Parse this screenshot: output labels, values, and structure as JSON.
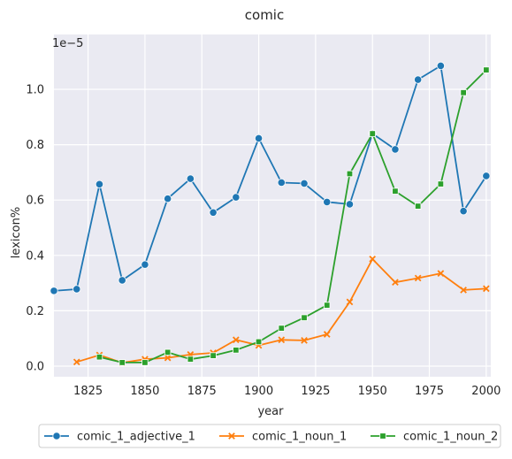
{
  "chart_data": {
    "type": "line",
    "title": "comic",
    "xlabel": "year",
    "ylabel": "lexicon%",
    "y_offset_text": "1e−5",
    "xlim": [
      1810,
      2002
    ],
    "ylim": [
      -0.4,
      1.13
    ],
    "x_ticks": [
      1825,
      1850,
      1875,
      1900,
      1925,
      1950,
      1975,
      2000
    ],
    "y_ticks": [
      0.0,
      0.2,
      0.4,
      0.6,
      0.8,
      1.0
    ],
    "y_tick_labels": [
      "0.0",
      "0.2",
      "0.4",
      "0.6",
      "0.8",
      "1.0"
    ],
    "grid": true,
    "background": "#eaeaf2",
    "legend_placement": "bottom-center",
    "series": [
      {
        "name": "comic_1_adjective_1",
        "color": "#1f77b4",
        "marker": "circle",
        "x": [
          1810,
          1820,
          1830,
          1840,
          1850,
          1860,
          1870,
          1880,
          1890,
          1900,
          1910,
          1920,
          1930,
          1940,
          1950,
          1960,
          1970,
          1980,
          1990,
          2000
        ],
        "y": [
          0.272,
          0.278,
          0.657,
          0.31,
          0.367,
          0.605,
          0.677,
          0.555,
          0.61,
          0.823,
          0.663,
          0.66,
          0.593,
          0.585,
          0.84,
          0.783,
          1.035,
          1.085,
          0.56,
          0.687
        ]
      },
      {
        "name": "comic_1_noun_1",
        "color": "#ff7f0e",
        "marker": "x",
        "x": [
          1820,
          1830,
          1840,
          1850,
          1860,
          1870,
          1880,
          1890,
          1900,
          1910,
          1920,
          1930,
          1940,
          1950,
          1960,
          1970,
          1980,
          1990,
          2000
        ],
        "y": [
          0.015,
          0.04,
          0.012,
          0.025,
          0.03,
          0.042,
          0.048,
          0.095,
          0.075,
          0.095,
          0.093,
          0.115,
          0.232,
          0.387,
          0.303,
          0.318,
          0.335,
          0.275,
          0.28
        ]
      },
      {
        "name": "comic_1_noun_2",
        "color": "#2ca02c",
        "marker": "square",
        "x": [
          1830,
          1840,
          1850,
          1860,
          1870,
          1880,
          1890,
          1900,
          1910,
          1920,
          1930,
          1940,
          1950,
          1960,
          1970,
          1980,
          1990,
          2000
        ],
        "y": [
          0.033,
          0.013,
          0.013,
          0.05,
          0.025,
          0.038,
          0.058,
          0.088,
          0.137,
          0.175,
          0.22,
          0.695,
          0.84,
          0.632,
          0.578,
          0.658,
          0.988,
          1.07
        ]
      }
    ]
  }
}
